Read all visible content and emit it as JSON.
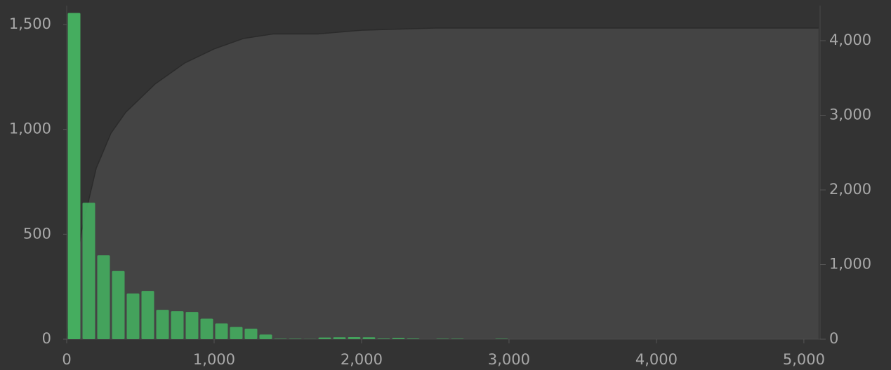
{
  "chart_data": {
    "type": "histogram",
    "bins": [
      0,
      100,
      200,
      300,
      400,
      500,
      600,
      700,
      800,
      900,
      1000,
      1100,
      1200,
      1300,
      1400,
      1500,
      1600,
      1700,
      1800,
      1900,
      2000,
      2100,
      2200,
      2300,
      2400,
      2500,
      2600,
      2700,
      2800,
      2900,
      3000
    ],
    "values": [
      1555,
      650,
      400,
      325,
      218,
      230,
      140,
      133,
      130,
      98,
      75,
      58,
      50,
      22,
      2,
      2,
      1,
      8,
      9,
      10,
      9,
      3,
      6,
      3,
      0,
      2,
      2,
      0,
      0,
      2
    ],
    "color": "#45ad5f",
    "cumulative": {
      "axis": "y2",
      "color": "#444444",
      "x": [
        0,
        100,
        200,
        300,
        400,
        500,
        600,
        800,
        1000,
        1200,
        1400,
        1700,
        2000,
        2500,
        5100
      ],
      "values": [
        0,
        1450,
        2290,
        2760,
        3040,
        3230,
        3420,
        3700,
        3890,
        4030,
        4090,
        4090,
        4140,
        4170,
        4170
      ]
    },
    "xlim": [
      0,
      5110
    ],
    "xticks": [
      0,
      {
        "value": 1000,
        "label": "1,000"
      },
      {
        "value": 2000,
        "label": "2,000"
      },
      {
        "value": 3000,
        "label": "3,000"
      },
      {
        "value": 4000,
        "label": "4,000"
      },
      {
        "value": 5000,
        "label": "5,000"
      }
    ],
    "ylim": [
      0,
      1590
    ],
    "yticks": [
      0,
      500,
      {
        "value": 1000,
        "label": "1,000"
      },
      {
        "value": 1500,
        "label": "1,500"
      }
    ],
    "y2lim": [
      0,
      4470
    ],
    "y2ticks": [
      0,
      {
        "value": 1000,
        "label": "1,000"
      },
      {
        "value": 2000,
        "label": "2,000"
      },
      {
        "value": 3000,
        "label": "3,000"
      },
      {
        "value": 4000,
        "label": "4,000"
      }
    ]
  }
}
